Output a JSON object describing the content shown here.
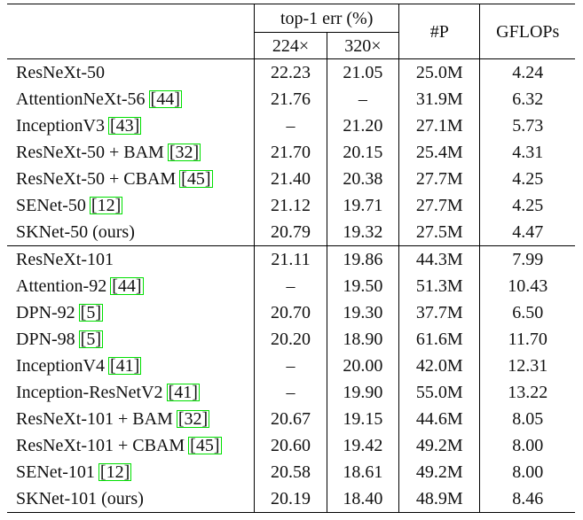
{
  "table": {
    "header": {
      "group_label": "top-1 err (%)",
      "sub_224": "224×",
      "sub_320": "320×",
      "params": "#P",
      "gflops": "GFLOPs"
    },
    "groups": [
      {
        "rows": [
          {
            "model": "ResNeXt-50",
            "ref": "",
            "e224": "22.23",
            "e320": "21.05",
            "params": "25.0M",
            "gflops": "4.24",
            "bold": false
          },
          {
            "model": "AttentionNeXt-56",
            "ref": "44",
            "e224": "21.76",
            "e320": "–",
            "params": "31.9M",
            "gflops": "6.32",
            "bold": false
          },
          {
            "model": "InceptionV3",
            "ref": "43",
            "e224": "–",
            "e320": "21.20",
            "params": "27.1M",
            "gflops": "5.73",
            "bold": false
          },
          {
            "model": "ResNeXt-50 + BAM",
            "ref": "32",
            "e224": "21.70",
            "e320": "20.15",
            "params": "25.4M",
            "gflops": "4.31",
            "bold": false
          },
          {
            "model": "ResNeXt-50 + CBAM",
            "ref": "45",
            "e224": "21.40",
            "e320": "20.38",
            "params": "27.7M",
            "gflops": "4.25",
            "bold": false
          },
          {
            "model": "SENet-50",
            "ref": "12",
            "e224": "21.12",
            "e320": "19.71",
            "params": "27.7M",
            "gflops": "4.25",
            "bold": false
          },
          {
            "model": "SKNet-50 (ours)",
            "ref": "",
            "e224": "20.79",
            "e320": "19.32",
            "params": "27.5M",
            "gflops": "4.47",
            "bold": true
          }
        ]
      },
      {
        "rows": [
          {
            "model": "ResNeXt-101",
            "ref": "",
            "e224": "21.11",
            "e320": "19.86",
            "params": "44.3M",
            "gflops": "7.99",
            "bold": false
          },
          {
            "model": "Attention-92",
            "ref": "44",
            "e224": "–",
            "e320": "19.50",
            "params": "51.3M",
            "gflops": "10.43",
            "bold": false
          },
          {
            "model": "DPN-92",
            "ref": "5",
            "e224": "20.70",
            "e320": "19.30",
            "params": "37.7M",
            "gflops": "6.50",
            "bold": false
          },
          {
            "model": "DPN-98",
            "ref": "5",
            "e224": "20.20",
            "e320": "18.90",
            "params": "61.6M",
            "gflops": "11.70",
            "bold": false
          },
          {
            "model": "InceptionV4",
            "ref": "41",
            "e224": "–",
            "e320": "20.00",
            "params": "42.0M",
            "gflops": "12.31",
            "bold": false
          },
          {
            "model": "Inception-ResNetV2",
            "ref": "41",
            "e224": "–",
            "e320": "19.90",
            "params": "55.0M",
            "gflops": "13.22",
            "bold": false
          },
          {
            "model": "ResNeXt-101 + BAM",
            "ref": "32",
            "e224": "20.67",
            "e320": "19.15",
            "params": "44.6M",
            "gflops": "8.05",
            "bold": false
          },
          {
            "model": "ResNeXt-101 + CBAM",
            "ref": "45",
            "e224": "20.60",
            "e320": "19.42",
            "params": "49.2M",
            "gflops": "8.00",
            "bold": false
          },
          {
            "model": "SENet-101",
            "ref": "12",
            "e224": "20.58",
            "e320": "18.61",
            "params": "49.2M",
            "gflops": "8.00",
            "bold": false
          },
          {
            "model": "SKNet-101 (ours)",
            "ref": "",
            "e224": "20.19",
            "e320": "18.40",
            "params": "48.9M",
            "gflops": "8.46",
            "bold": true
          }
        ]
      }
    ]
  }
}
